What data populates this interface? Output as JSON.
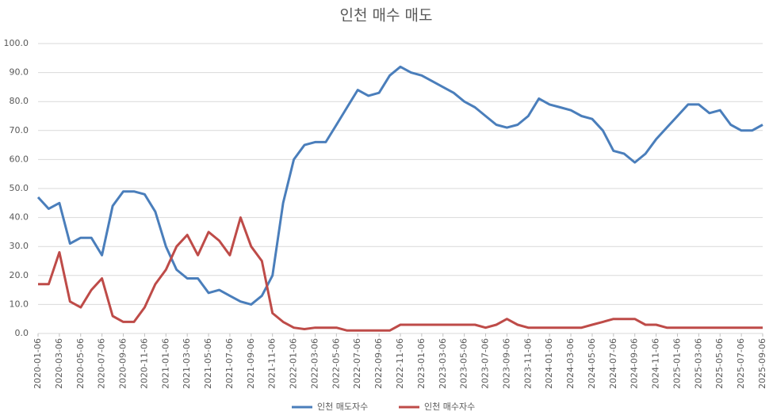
{
  "chart_data": {
    "type": "line",
    "title": "인천 매수 매도",
    "categories": [
      "2020-01-06",
      null,
      "2020-03-06",
      null,
      "2020-05-06",
      null,
      "2020-07-06",
      null,
      "2020-09-06",
      null,
      "2020-11-06",
      null,
      "2021-01-06",
      null,
      "2021-03-06",
      null,
      "2021-05-06",
      null,
      "2021-07-06",
      null,
      "2021-09-06",
      null,
      "2021-11-06",
      null,
      "2022-01-06",
      null,
      "2022-03-06",
      null,
      "2022-05-06",
      null,
      "2022-07-06",
      null,
      "2022-09-06",
      null,
      "2022-11-06",
      null,
      "2023-01-06",
      null,
      "2023-03-06",
      null,
      "2023-05-06",
      null,
      "2023-07-06",
      null,
      "2023-09-06",
      null,
      "2023-11-06",
      null,
      "2024-01-06",
      null,
      "2024-03-06",
      null,
      "2024-05-06",
      null,
      "2024-07-06",
      null,
      "2024-09-06",
      null,
      "2024-11-06",
      null,
      "2025-01-06",
      null,
      "2025-03-06",
      null,
      "2025-05-06",
      null,
      "2025-07-06",
      null,
      "2025-09-06"
    ],
    "series": [
      {
        "name": "인천 매도자수",
        "color": "#4a7ebb",
        "values": [
          47,
          43,
          45,
          31,
          33,
          33,
          27,
          44,
          49,
          49,
          48,
          42,
          30,
          22,
          19,
          19,
          14,
          15,
          13,
          11,
          10,
          13,
          20,
          45,
          60,
          65,
          66,
          66,
          72,
          78,
          84,
          82,
          83,
          89,
          92,
          90,
          89,
          87,
          85,
          83,
          80,
          78,
          75,
          72,
          71,
          72,
          75,
          81,
          79,
          78,
          77,
          75,
          74,
          70,
          63,
          62,
          59,
          62,
          67,
          71,
          75,
          79,
          79,
          76,
          77,
          72,
          70,
          70,
          72
        ]
      },
      {
        "name": "인천 매수자수",
        "color": "#be4b48",
        "values": [
          17,
          17,
          28,
          11,
          9,
          15,
          19,
          6,
          4,
          4,
          9,
          17,
          22,
          30,
          34,
          27,
          35,
          32,
          27,
          40,
          30,
          25,
          7,
          4,
          2,
          1.5,
          2,
          2,
          2,
          1,
          1,
          1,
          1,
          1,
          3,
          3,
          3,
          3,
          3,
          3,
          3,
          3,
          2,
          3,
          5,
          3,
          2,
          2,
          2,
          2,
          2,
          2,
          3,
          4,
          5,
          5,
          5,
          3,
          3,
          2,
          2,
          2,
          2,
          2,
          2,
          2,
          2,
          2,
          2
        ]
      }
    ],
    "ylim": [
      0,
      100
    ],
    "yticks": [
      {
        "value": 0,
        "label": "0.0"
      },
      {
        "value": 10,
        "label": "10.0"
      },
      {
        "value": 20,
        "label": "20.0"
      },
      {
        "value": 30,
        "label": "30.0"
      },
      {
        "value": 40,
        "label": "40.0"
      },
      {
        "value": 50,
        "label": "50.0"
      },
      {
        "value": 60,
        "label": "60.0"
      },
      {
        "value": 70,
        "label": "70.0"
      },
      {
        "value": 80,
        "label": "80.0"
      },
      {
        "value": 90,
        "label": "90.0"
      },
      {
        "value": 100,
        "label": "100.0"
      }
    ],
    "grid": true,
    "legend": "bottom"
  }
}
